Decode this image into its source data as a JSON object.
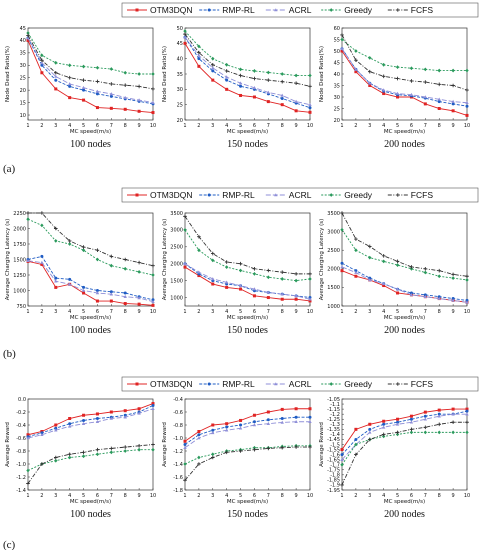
{
  "styles": {
    "OTM3DQN": {
      "color": "#e02424",
      "dash": "",
      "marker": "square"
    },
    "RMP-RL": {
      "color": "#1f5cc4",
      "dash": "3,1.5",
      "marker": "circle"
    },
    "ACRL": {
      "color": "#8f8fd8",
      "dash": "5,2",
      "marker": "tri"
    },
    "Greedy": {
      "color": "#2a9a5c",
      "dash": "2,1.5",
      "marker": "diamond"
    },
    "FCFS": {
      "color": "#333333",
      "dash": "4,1.5,1,1.5",
      "marker": "plus"
    }
  },
  "legend_names": [
    "OTM3DQN",
    "RMP-RL",
    "ACRL",
    "Greedy",
    "FCFS"
  ],
  "row_labels": [
    "(a)",
    "(b)",
    "(c)"
  ],
  "chart_data": [
    {
      "type": "line",
      "panel": "a1",
      "ylabel": "Node Dead Ratio(%)",
      "xlabel": "MC speed(m/s)",
      "subtitle": "100 nodes",
      "x": [
        1,
        2,
        3,
        4,
        5,
        6,
        7,
        8,
        9,
        10
      ],
      "xlim": [
        1,
        10
      ],
      "ylim": [
        8,
        45
      ],
      "yticks": [
        10,
        15,
        20,
        25,
        30,
        35,
        40,
        45
      ],
      "series": [
        {
          "name": "OTM3DQN",
          "values": [
            40,
            27,
            20.5,
            17,
            16,
            13,
            12.7,
            12.3,
            11.5,
            11
          ]
        },
        {
          "name": "RMP-RL",
          "values": [
            41,
            30,
            24,
            21.5,
            20,
            18.5,
            17.5,
            16.5,
            15.5,
            14.5
          ]
        },
        {
          "name": "ACRL",
          "values": [
            41,
            31,
            25.5,
            22.5,
            21,
            19.5,
            18.5,
            17,
            16,
            15
          ]
        },
        {
          "name": "Greedy",
          "values": [
            43,
            34,
            31,
            30,
            29.5,
            29,
            28.5,
            27,
            26.5,
            26.5
          ]
        },
        {
          "name": "FCFS",
          "values": [
            42,
            32,
            27,
            25,
            24,
            23.5,
            22.5,
            22,
            21.5,
            20.5
          ]
        }
      ]
    },
    {
      "type": "line",
      "panel": "a2",
      "ylabel": "Node Dead Ratio(%)",
      "xlabel": "MC speed(m/s)",
      "subtitle": "150 nodes",
      "x": [
        1,
        2,
        3,
        4,
        5,
        6,
        7,
        8,
        9,
        10
      ],
      "xlim": [
        1,
        10
      ],
      "ylim": [
        20,
        50
      ],
      "yticks": [
        20,
        25,
        30,
        35,
        40,
        45,
        50
      ],
      "series": [
        {
          "name": "OTM3DQN",
          "values": [
            45,
            37.5,
            33,
            30,
            28,
            27.5,
            26,
            25,
            23,
            22.5
          ]
        },
        {
          "name": "RMP-RL",
          "values": [
            47,
            40,
            36,
            33,
            31,
            30,
            28.5,
            27,
            25.5,
            24
          ]
        },
        {
          "name": "ACRL",
          "values": [
            47,
            41,
            37,
            34,
            32,
            30.5,
            29,
            28,
            26,
            25
          ]
        },
        {
          "name": "Greedy",
          "values": [
            49,
            44,
            40,
            38,
            36.5,
            36,
            35.5,
            35,
            34.5,
            34.5
          ]
        },
        {
          "name": "FCFS",
          "values": [
            48,
            42,
            38,
            36,
            34.5,
            33.5,
            33,
            32.5,
            32,
            31
          ]
        }
      ]
    },
    {
      "type": "line",
      "panel": "a3",
      "ylabel": "Node Dead Ratio(%)",
      "xlabel": "MC speed(m/s)",
      "subtitle": "200 nodes",
      "x": [
        1,
        2,
        3,
        4,
        5,
        6,
        7,
        8,
        9,
        10
      ],
      "xlim": [
        1,
        10
      ],
      "ylim": [
        20,
        60
      ],
      "yticks": [
        20,
        25,
        30,
        35,
        40,
        45,
        50,
        55,
        60
      ],
      "series": [
        {
          "name": "OTM3DQN",
          "values": [
            50,
            41,
            35,
            31.5,
            30,
            30,
            27,
            25,
            24,
            22
          ]
        },
        {
          "name": "RMP-RL",
          "values": [
            51,
            42,
            36,
            32.5,
            31,
            30.5,
            29.5,
            28,
            27,
            26
          ]
        },
        {
          "name": "ACRL",
          "values": [
            51,
            42,
            36,
            33,
            31.5,
            31,
            30,
            29,
            28,
            27.5
          ]
        },
        {
          "name": "Greedy",
          "values": [
            55,
            50,
            47,
            44,
            43,
            42.5,
            42,
            41.5,
            41.5,
            41.5
          ]
        },
        {
          "name": "FCFS",
          "values": [
            57,
            46,
            41,
            39,
            38,
            37,
            36.5,
            35.5,
            35,
            33
          ]
        }
      ]
    },
    {
      "type": "line",
      "panel": "b1",
      "ylabel": "Average Charging Latency (s)",
      "xlabel": "MC speed(m/s)",
      "subtitle": "100 nodes",
      "x": [
        1,
        2,
        3,
        4,
        5,
        6,
        7,
        8,
        9,
        10
      ],
      "xlim": [
        1,
        10
      ],
      "ylim": [
        750,
        2250
      ],
      "yticks": [
        750,
        1000,
        1250,
        1500,
        1750,
        2000,
        2250
      ],
      "series": [
        {
          "name": "OTM3DQN",
          "values": [
            1470,
            1420,
            1050,
            1100,
            960,
            830,
            830,
            790,
            780,
            760
          ]
        },
        {
          "name": "RMP-RL",
          "values": [
            1500,
            1550,
            1200,
            1180,
            1050,
            1000,
            980,
            960,
            900,
            850
          ]
        },
        {
          "name": "ACRL",
          "values": [
            1480,
            1450,
            1150,
            1100,
            1000,
            960,
            940,
            900,
            880,
            820
          ]
        },
        {
          "name": "Greedy",
          "values": [
            2150,
            2050,
            1800,
            1750,
            1650,
            1500,
            1400,
            1350,
            1300,
            1250
          ]
        },
        {
          "name": "FCFS",
          "values": [
            2250,
            2250,
            2000,
            1800,
            1700,
            1650,
            1550,
            1500,
            1450,
            1400
          ]
        }
      ]
    },
    {
      "type": "line",
      "panel": "b2",
      "ylabel": "Average Charging Latency (s)",
      "xlabel": "MC speed(m/s)",
      "subtitle": "150 nodes",
      "x": [
        1,
        2,
        3,
        4,
        5,
        6,
        7,
        8,
        9,
        10
      ],
      "xlim": [
        1,
        10
      ],
      "ylim": [
        750,
        3500
      ],
      "yticks": [
        1000,
        1500,
        2000,
        2500,
        3000,
        3500
      ],
      "series": [
        {
          "name": "OTM3DQN",
          "values": [
            1900,
            1650,
            1400,
            1300,
            1250,
            1050,
            1000,
            950,
            950,
            900
          ]
        },
        {
          "name": "RMP-RL",
          "values": [
            2000,
            1700,
            1500,
            1400,
            1350,
            1200,
            1150,
            1100,
            1050,
            1000
          ]
        },
        {
          "name": "ACRL",
          "values": [
            2000,
            1750,
            1550,
            1450,
            1350,
            1250,
            1150,
            1100,
            1050,
            950
          ]
        },
        {
          "name": "Greedy",
          "values": [
            3000,
            2400,
            2100,
            1900,
            1800,
            1700,
            1600,
            1550,
            1500,
            1550
          ]
        },
        {
          "name": "FCFS",
          "values": [
            3400,
            2800,
            2300,
            2050,
            2000,
            1850,
            1800,
            1750,
            1700,
            1700
          ]
        }
      ]
    },
    {
      "type": "line",
      "panel": "b3",
      "ylabel": "Average Charging Latency (s)",
      "xlabel": "MC speed(m/s)",
      "subtitle": "200 nodes",
      "x": [
        1,
        2,
        3,
        4,
        5,
        6,
        7,
        8,
        9,
        10
      ],
      "xlim": [
        1,
        10
      ],
      "ylim": [
        1000,
        3500
      ],
      "yticks": [
        1000,
        1500,
        2000,
        2500,
        3000,
        3500
      ],
      "series": [
        {
          "name": "OTM3DQN",
          "values": [
            1950,
            1800,
            1700,
            1550,
            1350,
            1300,
            1250,
            1200,
            1150,
            1100
          ]
        },
        {
          "name": "RMP-RL",
          "values": [
            2150,
            1950,
            1750,
            1600,
            1450,
            1350,
            1300,
            1250,
            1200,
            1150
          ]
        },
        {
          "name": "ACRL",
          "values": [
            2050,
            1900,
            1700,
            1600,
            1450,
            1300,
            1250,
            1200,
            1150,
            1100
          ]
        },
        {
          "name": "Greedy",
          "values": [
            3050,
            2500,
            2300,
            2200,
            2100,
            2000,
            1900,
            1800,
            1750,
            1700
          ]
        },
        {
          "name": "FCFS",
          "values": [
            3500,
            2800,
            2600,
            2350,
            2200,
            2050,
            2000,
            1950,
            1850,
            1800
          ]
        }
      ]
    },
    {
      "type": "line",
      "panel": "c1",
      "ylabel": "Average Reward",
      "xlabel": "MC speed(m/s)",
      "subtitle": "100 nodes",
      "x": [
        1,
        2,
        3,
        4,
        5,
        6,
        7,
        8,
        9,
        10
      ],
      "xlim": [
        1,
        10
      ],
      "ylim": [
        -1.4,
        0
      ],
      "yticks": [
        -1.4,
        -1.2,
        -1.0,
        -0.8,
        -0.6,
        -0.4,
        -0.2,
        0.0
      ],
      "series": [
        {
          "name": "OTM3DQN",
          "values": [
            -0.55,
            -0.5,
            -0.4,
            -0.3,
            -0.25,
            -0.23,
            -0.2,
            -0.18,
            -0.15,
            -0.07
          ]
        },
        {
          "name": "RMP-RL",
          "values": [
            -0.58,
            -0.52,
            -0.45,
            -0.38,
            -0.33,
            -0.3,
            -0.28,
            -0.25,
            -0.2,
            -0.1
          ]
        },
        {
          "name": "ACRL",
          "values": [
            -0.6,
            -0.55,
            -0.48,
            -0.42,
            -0.38,
            -0.35,
            -0.3,
            -0.28,
            -0.22,
            -0.15
          ]
        },
        {
          "name": "Greedy",
          "values": [
            -1.1,
            -1.0,
            -0.95,
            -0.9,
            -0.88,
            -0.85,
            -0.82,
            -0.8,
            -0.78,
            -0.78
          ]
        },
        {
          "name": "FCFS",
          "values": [
            -1.3,
            -1.0,
            -0.9,
            -0.85,
            -0.82,
            -0.78,
            -0.76,
            -0.74,
            -0.72,
            -0.7
          ]
        }
      ]
    },
    {
      "type": "line",
      "panel": "c2",
      "ylabel": "Average Reward",
      "xlabel": "MC speed(m/s)",
      "subtitle": "150 nodes",
      "x": [
        1,
        2,
        3,
        4,
        5,
        6,
        7,
        8,
        9,
        10
      ],
      "xlim": [
        1,
        10
      ],
      "ylim": [
        -1.8,
        -0.4
      ],
      "yticks": [
        -1.8,
        -1.6,
        -1.4,
        -1.2,
        -1.0,
        -0.8,
        -0.6,
        -0.4
      ],
      "series": [
        {
          "name": "OTM3DQN",
          "values": [
            -1.05,
            -0.9,
            -0.8,
            -0.78,
            -0.73,
            -0.65,
            -0.6,
            -0.56,
            -0.55,
            -0.55
          ]
        },
        {
          "name": "RMP-RL",
          "values": [
            -1.1,
            -0.95,
            -0.88,
            -0.83,
            -0.8,
            -0.75,
            -0.72,
            -0.7,
            -0.68,
            -0.68
          ]
        },
        {
          "name": "ACRL",
          "values": [
            -1.15,
            -1.0,
            -0.92,
            -0.88,
            -0.85,
            -0.8,
            -0.78,
            -0.76,
            -0.75,
            -0.75
          ]
        },
        {
          "name": "Greedy",
          "values": [
            -1.4,
            -1.3,
            -1.25,
            -1.2,
            -1.18,
            -1.15,
            -1.15,
            -1.13,
            -1.12,
            -1.12
          ]
        },
        {
          "name": "FCFS",
          "values": [
            -1.65,
            -1.4,
            -1.3,
            -1.22,
            -1.2,
            -1.18,
            -1.16,
            -1.15,
            -1.14,
            -1.14
          ]
        }
      ]
    },
    {
      "type": "line",
      "panel": "c3",
      "ylabel": "Average Reward",
      "xlabel": "MC speed(m/s)",
      "subtitle": "200 nodes",
      "x": [
        1,
        2,
        3,
        4,
        5,
        6,
        7,
        8,
        9,
        10
      ],
      "xlim": [
        1,
        10
      ],
      "ylim": [
        -1.95,
        -1.05
      ],
      "yticks": [
        -1.95,
        -1.9,
        -1.85,
        -1.8,
        -1.75,
        -1.7,
        -1.65,
        -1.6,
        -1.55,
        -1.5,
        -1.45,
        -1.4,
        -1.35,
        -1.3,
        -1.25,
        -1.2,
        -1.15,
        -1.1,
        -1.05
      ],
      "series": [
        {
          "name": "OTM3DQN",
          "values": [
            -1.55,
            -1.35,
            -1.3,
            -1.27,
            -1.25,
            -1.22,
            -1.18,
            -1.16,
            -1.15,
            -1.15
          ]
        },
        {
          "name": "RMP-RL",
          "values": [
            -1.6,
            -1.45,
            -1.35,
            -1.3,
            -1.28,
            -1.25,
            -1.22,
            -1.2,
            -1.2,
            -1.17
          ]
        },
        {
          "name": "ACRL",
          "values": [
            -1.65,
            -1.5,
            -1.38,
            -1.33,
            -1.3,
            -1.28,
            -1.25,
            -1.22,
            -1.2,
            -1.2
          ]
        },
        {
          "name": "Greedy",
          "values": [
            -1.7,
            -1.5,
            -1.45,
            -1.42,
            -1.4,
            -1.38,
            -1.38,
            -1.38,
            -1.38,
            -1.38
          ]
        },
        {
          "name": "FCFS",
          "values": [
            -1.9,
            -1.6,
            -1.45,
            -1.4,
            -1.38,
            -1.35,
            -1.33,
            -1.3,
            -1.28,
            -1.28
          ]
        }
      ]
    }
  ]
}
